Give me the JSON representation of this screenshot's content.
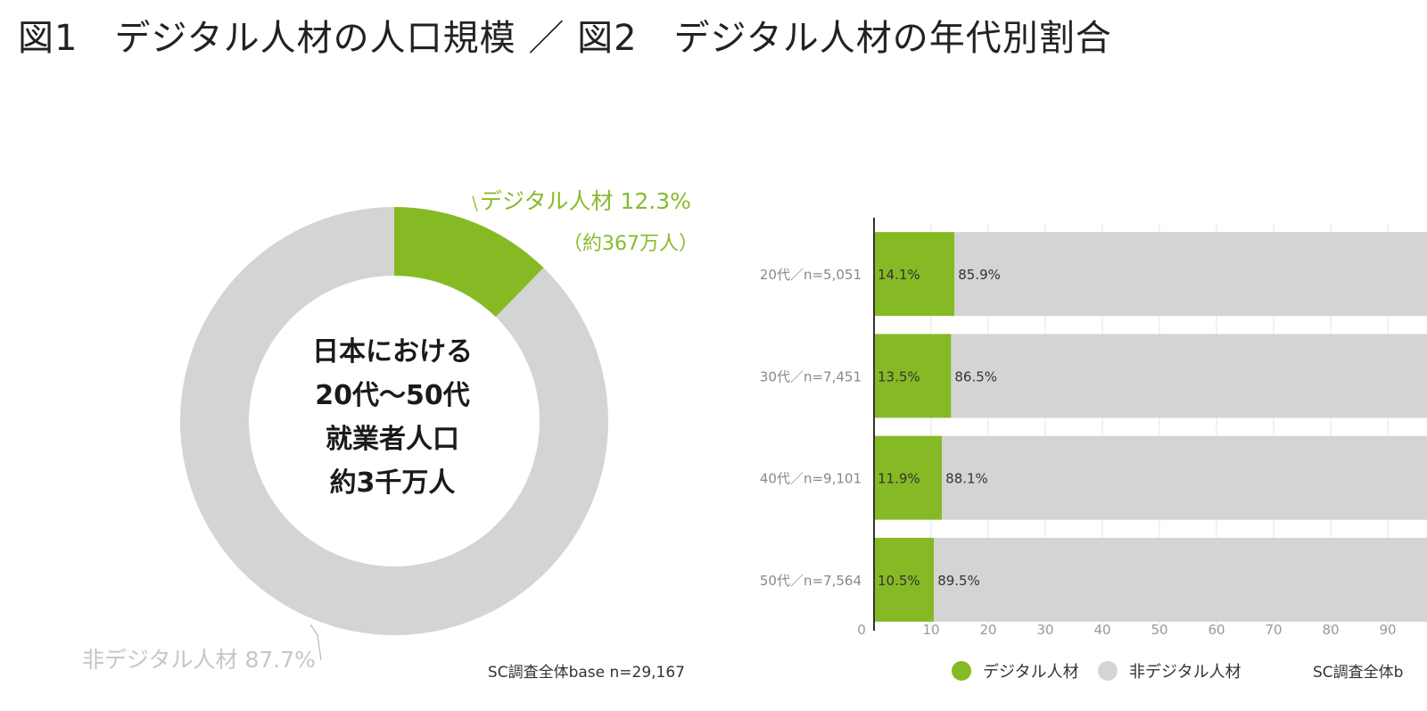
{
  "page_title": "図1　デジタル人材の人口規模 ／ 図2　デジタル人材の年代別割合",
  "colors": {
    "digital": "#86ba25",
    "non_digital": "#d4d4d4",
    "grid": "#e4e4e4",
    "axis": "#333333"
  },
  "chart_data": [
    {
      "id": "fig1",
      "type": "pie",
      "style": "donut",
      "slices": [
        {
          "label": "デジタル人材",
          "value": 12.3
        },
        {
          "label": "非デジタル人材",
          "value": 87.7
        }
      ],
      "labels": {
        "digital_line1": "デジタル人材 12.3%",
        "digital_line2": "（約367万人）",
        "non_digital": "非デジタル人材 87.7%"
      },
      "center_text": [
        "日本における",
        "20代～50代",
        "就業者人口",
        "約3千万人"
      ],
      "note": "SC調査全体base n=29,167"
    },
    {
      "id": "fig2",
      "type": "bar",
      "orientation": "horizontal",
      "stacked": true,
      "categories": [
        "20代／n=5,051",
        "30代／n=7,451",
        "40代／n=9,101",
        "50代／n=7,564"
      ],
      "series": [
        {
          "name": "デジタル人材",
          "values": [
            14.1,
            13.5,
            11.9,
            10.5
          ]
        },
        {
          "name": "非デジタル人材",
          "values": [
            85.9,
            86.5,
            88.1,
            89.5
          ]
        }
      ],
      "value_labels": {
        "digital": [
          "14.1%",
          "13.5%",
          "11.9%",
          "10.5%"
        ],
        "non_digital": [
          "85.9%",
          "86.5%",
          "88.1%",
          "89.5%"
        ]
      },
      "xlim": [
        0,
        100
      ],
      "xticks": [
        0,
        10,
        20,
        30,
        40,
        50,
        60,
        70,
        80,
        90
      ],
      "grid": true,
      "legend_position": "bottom",
      "note": "SC調査全体b"
    }
  ]
}
